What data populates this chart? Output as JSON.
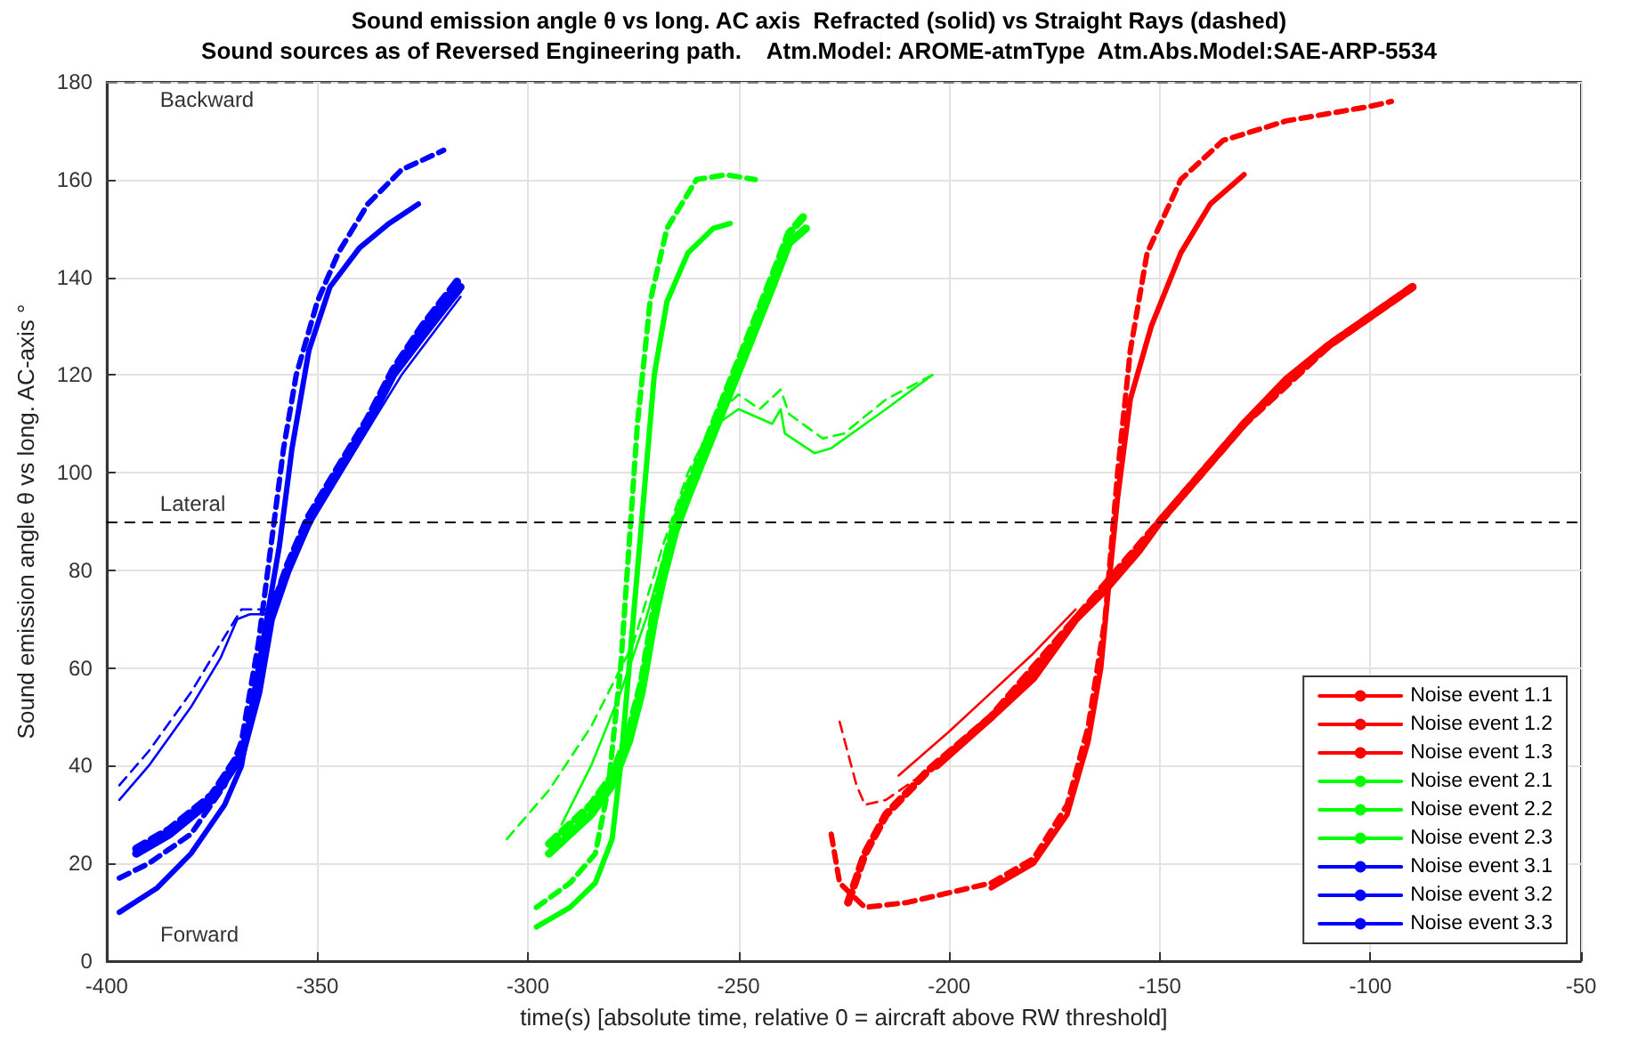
{
  "chart_data": {
    "type": "line",
    "title": "Sound emission angle θ vs long. AC axis  Refracted (solid) vs Straight Rays (dashed)",
    "subtitle": "Sound sources as of Reversed Engineering path.    Atm.Model: AROME-atmType  Atm.Abs.Model:SAE-ARP-5534",
    "xlabel": "time(s) [absolute time, relative 0 = aircraft above RW threshold]",
    "ylabel": "Sound emission angle θ vs long. AC-axis °",
    "xlim": [
      -400,
      -50
    ],
    "xticks": [
      -400,
      -350,
      -300,
      -250,
      -200,
      -150,
      -100,
      -50
    ],
    "ylim": [
      0,
      180
    ],
    "yticks": [
      0,
      20,
      40,
      60,
      80,
      100,
      120,
      140,
      160,
      180
    ],
    "grid": true,
    "legend": "bottom right",
    "marker": "none",
    "ref_lines": [
      {
        "axis": "y",
        "value": 90,
        "label": "Lateral",
        "color": "#000000",
        "line_style": "dashed"
      },
      {
        "axis": "y",
        "value": 180,
        "label": "Backward",
        "color": "#808080",
        "line_style": "dashed"
      }
    ],
    "annotations": [
      "Forward"
    ],
    "series": [
      {
        "name": "Noise event 1.1",
        "color": "#ff0000",
        "line_style": "solid",
        "x": [
          -203,
          -190,
          -180,
          -170,
          -163,
          -155,
          -150,
          -140,
          -130,
          -120,
          -110,
          -100,
          -90
        ],
        "values": [
          40,
          50,
          58,
          70,
          76,
          84,
          90,
          100,
          110,
          119,
          126,
          132,
          138
        ]
      },
      {
        "name": "Noise event 1.2",
        "color": "#ff0000",
        "line_style": "solid",
        "x": [
          -190,
          -180,
          -172,
          -167,
          -164,
          -162,
          -160,
          -157,
          -152,
          -145,
          -138,
          -130
        ],
        "values": [
          15,
          20,
          30,
          45,
          60,
          78,
          95,
          115,
          130,
          145,
          155,
          161
        ]
      },
      {
        "name": "Noise event 1.3",
        "color": "#ff0000",
        "line_style": "solid",
        "x": [
          -212,
          -200,
          -190,
          -180,
          -170
        ],
        "values": [
          38,
          47,
          55,
          63,
          72
        ]
      },
      {
        "name": "Noise event 2.1",
        "color": "#00ff00",
        "line_style": "solid",
        "x": [
          -295,
          -290,
          -285,
          -280,
          -276,
          -273,
          -270,
          -268,
          -265,
          -262,
          -255,
          -248,
          -242,
          -238,
          -234
        ],
        "values": [
          22,
          26,
          30,
          36,
          45,
          55,
          70,
          78,
          88,
          95,
          110,
          125,
          138,
          147,
          150
        ]
      },
      {
        "name": "Noise event 2.2",
        "color": "#00ff00",
        "line_style": "solid",
        "x": [
          -298,
          -290,
          -284,
          -280,
          -278,
          -276,
          -274,
          -272,
          -270,
          -267,
          -262,
          -256,
          -252
        ],
        "values": [
          7,
          11,
          16,
          25,
          40,
          60,
          80,
          100,
          120,
          135,
          145,
          150,
          151
        ]
      },
      {
        "name": "Noise event 2.3",
        "color": "#00ff00",
        "line_style": "solid",
        "x": [
          -292,
          -285,
          -278,
          -272,
          -268,
          -262,
          -255,
          -250,
          -242,
          -240,
          -239,
          -232,
          -228,
          -215,
          -204
        ],
        "values": [
          28,
          40,
          55,
          70,
          82,
          98,
          110,
          113,
          110,
          113,
          108,
          104,
          105,
          113,
          120
        ]
      },
      {
        "name": "Noise event 3.1",
        "color": "#0000ff",
        "line_style": "solid",
        "x": [
          -393,
          -385,
          -375,
          -368,
          -364,
          -361,
          -357,
          -352,
          -345,
          -338,
          -332,
          -325,
          -316
        ],
        "values": [
          22,
          26,
          33,
          42,
          55,
          70,
          80,
          90,
          100,
          110,
          120,
          128,
          138
        ]
      },
      {
        "name": "Noise event 3.2",
        "color": "#0000ff",
        "line_style": "solid",
        "x": [
          -397,
          -388,
          -380,
          -372,
          -368,
          -365,
          -362,
          -359,
          -356,
          -352,
          -347,
          -340,
          -333,
          -326
        ],
        "values": [
          10,
          15,
          22,
          32,
          40,
          55,
          70,
          85,
          105,
          125,
          138,
          146,
          151,
          155
        ]
      },
      {
        "name": "Noise event 3.3",
        "color": "#0000ff",
        "line_style": "solid",
        "x": [
          -397,
          -390,
          -380,
          -373,
          -369,
          -366,
          -362,
          -357,
          -350,
          -340,
          -330,
          -316
        ],
        "values": [
          33,
          40,
          52,
          62,
          70,
          71,
          71,
          80,
          92,
          106,
          120,
          136
        ]
      },
      {
        "color": "#ff0000",
        "line_style": "dashed",
        "x": [
          -224,
          -220,
          -215,
          -205,
          -190,
          -170,
          -150,
          -130,
          -110,
          -90
        ],
        "values": [
          12,
          22,
          30,
          39,
          50,
          70,
          90,
          110,
          126,
          138
        ]
      },
      {
        "color": "#ff0000",
        "line_style": "dashed",
        "x": [
          -228,
          -226,
          -220,
          -210,
          -200,
          -190,
          -180,
          -172,
          -167,
          -163,
          -160,
          -157,
          -153,
          -145,
          -135,
          -120,
          -100,
          -95
        ],
        "values": [
          26,
          16,
          11,
          12,
          14,
          16,
          21,
          32,
          48,
          70,
          100,
          125,
          145,
          160,
          168,
          172,
          175,
          176
        ]
      },
      {
        "color": "#ff0000",
        "line_style": "dashed",
        "x": [
          -226,
          -222,
          -220,
          -215,
          -205
        ],
        "values": [
          49,
          36,
          32,
          33,
          39
        ]
      },
      {
        "color": "#00ff00",
        "line_style": "dashed",
        "x": [
          -295,
          -290,
          -285,
          -280,
          -276,
          -273,
          -270,
          -268,
          -265,
          -262,
          -255,
          -248,
          -242,
          -238,
          -234
        ],
        "values": [
          24,
          28,
          32,
          38,
          47,
          57,
          72,
          80,
          90,
          97,
          112,
          127,
          140,
          149,
          153
        ]
      },
      {
        "color": "#00ff00",
        "line_style": "dashed",
        "x": [
          -298,
          -290,
          -284,
          -281,
          -278,
          -276,
          -274,
          -271,
          -267,
          -260,
          -253,
          -246
        ],
        "values": [
          11,
          16,
          22,
          35,
          60,
          85,
          110,
          135,
          150,
          160,
          161,
          160
        ]
      },
      {
        "color": "#00ff00",
        "line_style": "dashed",
        "x": [
          -305,
          -295,
          -285,
          -275,
          -268,
          -262,
          -255,
          -250,
          -245,
          -240,
          -238,
          -230,
          -225,
          -215,
          -204
        ],
        "values": [
          25,
          35,
          48,
          65,
          85,
          100,
          112,
          116,
          113,
          117,
          112,
          107,
          108,
          115,
          120
        ]
      },
      {
        "color": "#0000ff",
        "line_style": "dashed",
        "x": [
          -393,
          -385,
          -375,
          -368,
          -364,
          -361,
          -357,
          -352,
          -345,
          -338,
          -332,
          -325,
          -316
        ],
        "values": [
          23,
          27,
          34,
          43,
          56,
          71,
          81,
          91,
          101,
          111,
          121,
          130,
          140
        ]
      },
      {
        "color": "#0000ff",
        "line_style": "dashed",
        "x": [
          -397,
          -390,
          -380,
          -372,
          -368,
          -364,
          -361,
          -358,
          -355,
          -350,
          -345,
          -338,
          -330,
          -320
        ],
        "values": [
          17,
          20,
          26,
          36,
          45,
          65,
          85,
          105,
          120,
          135,
          145,
          155,
          162,
          166
        ]
      },
      {
        "color": "#0000ff",
        "line_style": "dashed",
        "x": [
          -397,
          -390,
          -380,
          -373,
          -368,
          -362,
          -357,
          -350,
          -340,
          -330,
          -316
        ],
        "values": [
          36,
          43,
          55,
          65,
          72,
          72,
          81,
          93,
          108,
          122,
          137
        ]
      }
    ]
  }
}
